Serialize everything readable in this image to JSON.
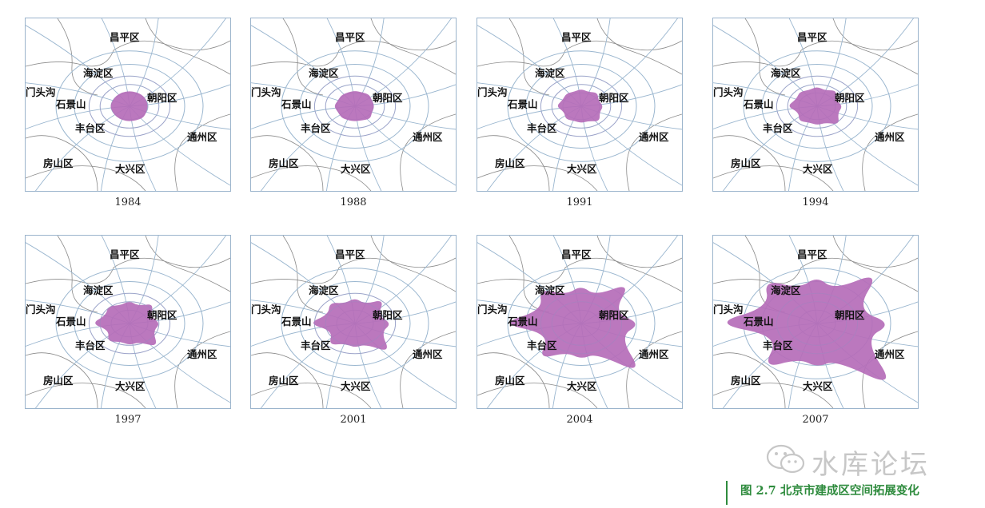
{
  "panels": [
    {
      "year": "1984",
      "extent": 0.14
    },
    {
      "year": "1988",
      "extent": 0.2
    },
    {
      "year": "1991",
      "extent": 0.3
    },
    {
      "year": "1994",
      "extent": 0.4
    },
    {
      "year": "1997",
      "extent": 0.5
    },
    {
      "year": "2001",
      "extent": 0.58
    },
    {
      "year": "2004",
      "extent": 0.85
    },
    {
      "year": "2007",
      "extent": 1.0
    }
  ],
  "district_labels": {
    "changping": "昌平区",
    "haidian": "海淀区",
    "mentougou": "门头沟",
    "shijingshan": "石景山",
    "chaoyang": "朝阳区",
    "fengtai": "丰台区",
    "tongzhou": "通州区",
    "fangshan": "房山区",
    "daxing": "大兴区"
  },
  "colors": {
    "built_up_fill": "#b56cb8",
    "road_lines": "#9ab6cf",
    "district_border": "#8a8a8a",
    "caption_green": "#2e8b3d"
  },
  "watermark": {
    "text": "水库论坛",
    "icon": "wechat-icon"
  },
  "caption": "图 2.7 北京市建成区空间拓展变化"
}
